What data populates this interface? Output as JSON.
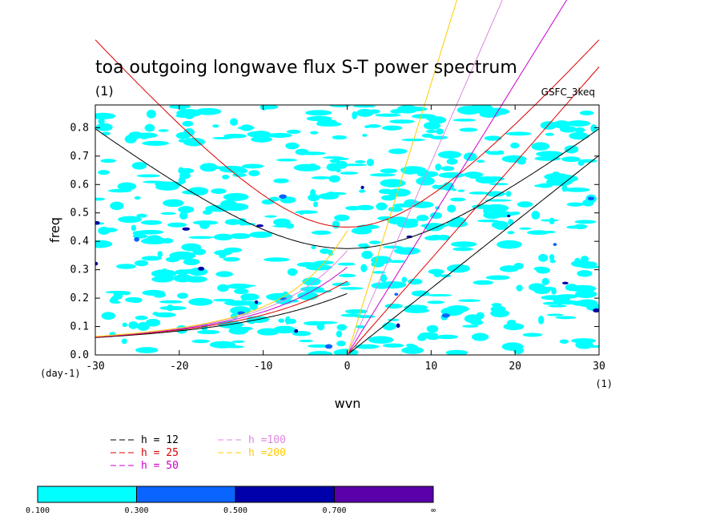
{
  "chart_data": {
    "type": "heatmap",
    "title": "toa outgoing longwave flux S-T power spectrum",
    "subtitle": "(1)",
    "tag": "GSFC_3keq",
    "xlabel": "wvn",
    "ylabel": "freq",
    "xunit": "(1)",
    "yunit": "(day-1)",
    "xlim": [
      -30,
      30
    ],
    "ylim": [
      0,
      0.88
    ],
    "x_ticks": [
      -30,
      -20,
      -10,
      0,
      10,
      20,
      30
    ],
    "y_ticks": [
      0.0,
      0.1,
      0.2,
      0.3,
      0.4,
      0.5,
      0.6,
      0.7,
      0.8
    ],
    "x_tick_labels": [
      "-30",
      "-20",
      "-10",
      "0",
      "10",
      "20",
      "30"
    ],
    "y_tick_labels": [
      "0.0",
      "0.1",
      "0.2",
      "0.3",
      "0.4",
      "0.5",
      "0.6",
      "0.7",
      "0.8"
    ],
    "colorbar": {
      "labels": [
        "0.100",
        "0.300",
        "0.500",
        "0.700",
        "∞"
      ],
      "colors": [
        "#00ffff",
        "#0a64ff",
        "#0000aa",
        "#5a00aa"
      ]
    },
    "series": [
      {
        "name": "h = 12",
        "h": 12,
        "color": "#000000"
      },
      {
        "name": "h = 25",
        "h": 25,
        "color": "#dd0000"
      },
      {
        "name": "h = 50",
        "h": 50,
        "color": "#cc00cc"
      },
      {
        "name": "h =100",
        "h": 100,
        "color": "#dd88dd"
      },
      {
        "name": "h =200",
        "h": 200,
        "color": "#ffcc00"
      }
    ]
  }
}
